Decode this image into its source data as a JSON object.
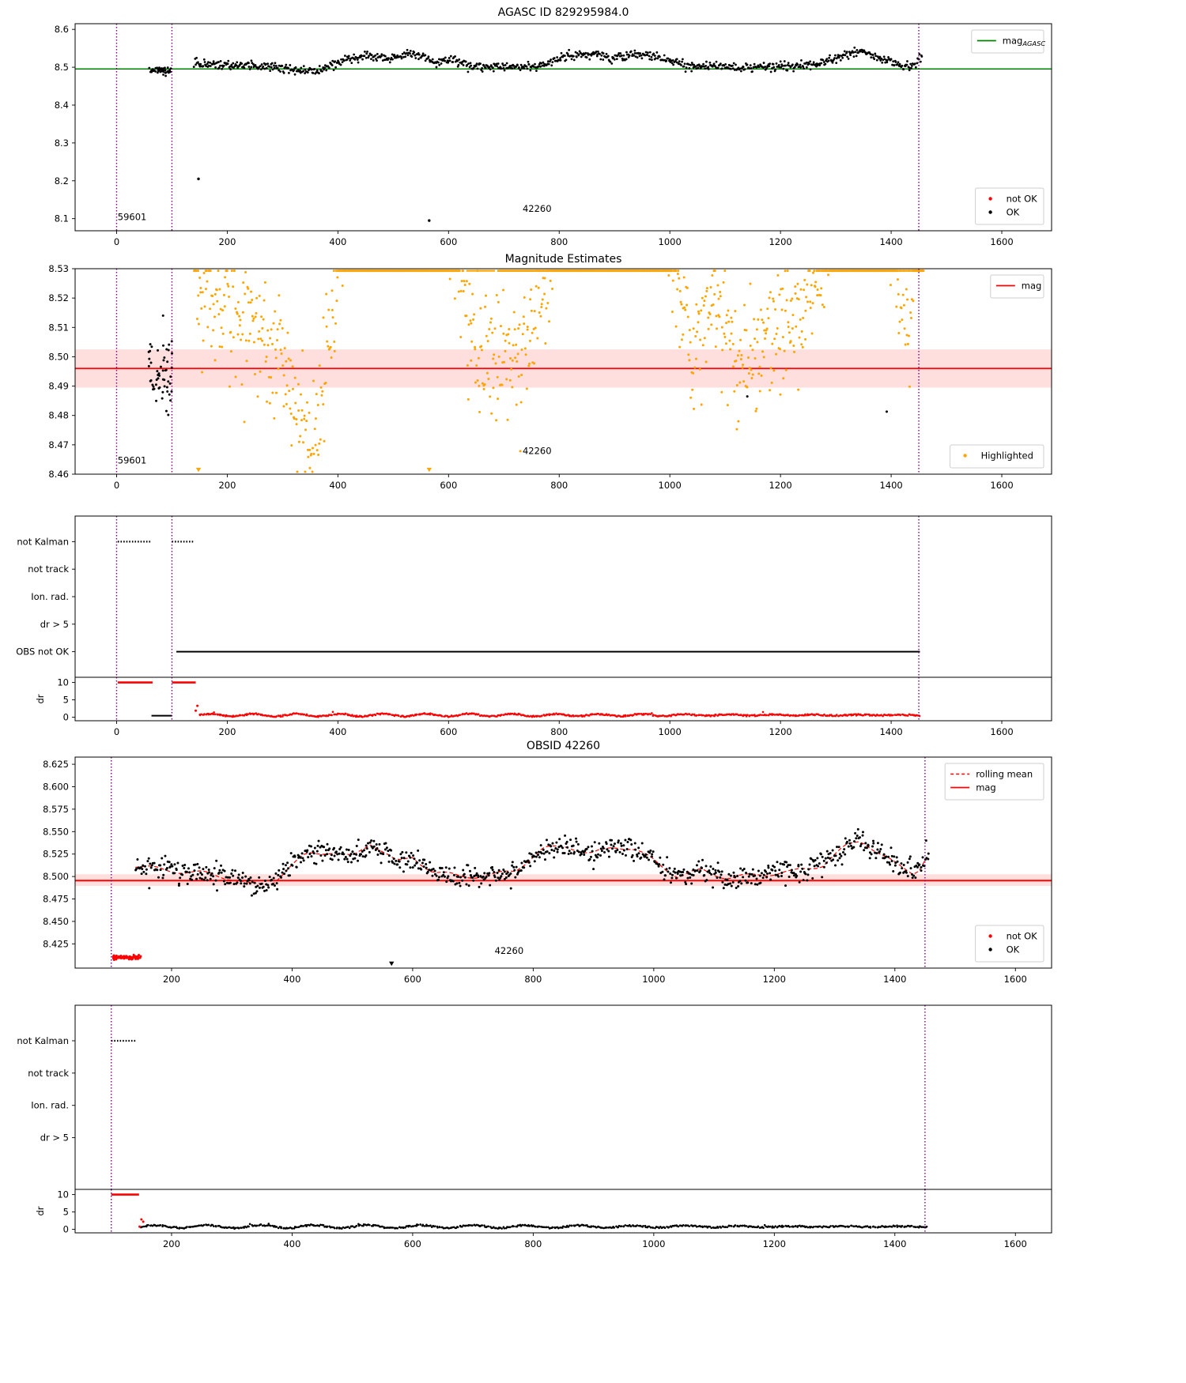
{
  "figure": {
    "background": "#ffffff"
  },
  "chart_data": {
    "shared_curves": {
      "mag_trend": [
        [
          140,
          8.512
        ],
        [
          190,
          8.507
        ],
        [
          250,
          8.504
        ],
        [
          300,
          8.498
        ],
        [
          335,
          8.49
        ],
        [
          365,
          8.492
        ],
        [
          395,
          8.51
        ],
        [
          425,
          8.525
        ],
        [
          465,
          8.528
        ],
        [
          500,
          8.521
        ],
        [
          530,
          8.537
        ],
        [
          555,
          8.527
        ],
        [
          575,
          8.515
        ],
        [
          600,
          8.521
        ],
        [
          635,
          8.505
        ],
        [
          680,
          8.5
        ],
        [
          730,
          8.501
        ],
        [
          770,
          8.507
        ],
        [
          815,
          8.53
        ],
        [
          855,
          8.535
        ],
        [
          895,
          8.524
        ],
        [
          935,
          8.534
        ],
        [
          965,
          8.531
        ],
        [
          1000,
          8.518
        ],
        [
          1040,
          8.5
        ],
        [
          1080,
          8.507
        ],
        [
          1125,
          8.498
        ],
        [
          1170,
          8.502
        ],
        [
          1230,
          8.505
        ],
        [
          1280,
          8.513
        ],
        [
          1320,
          8.534
        ],
        [
          1345,
          8.541
        ],
        [
          1375,
          8.525
        ],
        [
          1405,
          8.512
        ],
        [
          1435,
          8.503
        ],
        [
          1458,
          8.528
        ]
      ]
    },
    "charts": [
      {
        "id": "agasc",
        "type": "scatter",
        "title": "AGASC ID 829295984.0",
        "xlim": [
          -75,
          1690
        ],
        "ylim": [
          8.068,
          8.615
        ],
        "xticks": [
          0,
          200,
          400,
          600,
          800,
          1000,
          1200,
          1400,
          1600
        ],
        "yticks": [
          8.1,
          8.2,
          8.3,
          8.4,
          8.5,
          8.6
        ],
        "ytick_decimals": 1,
        "hlines": [
          {
            "y": 8.4955,
            "color": "#008000",
            "width": 1.6
          }
        ],
        "bands": [],
        "vlines": [
          {
            "x": 0
          },
          {
            "x": 100
          },
          {
            "x": 1450
          }
        ],
        "vline_style": {
          "color": "#800080",
          "dash": "1.5 2.5",
          "width": 1.4
        },
        "annotations": [
          {
            "text": "59601",
            "x": 28,
            "y": 8.096
          },
          {
            "text": "42260",
            "x": 760,
            "y": 8.118
          }
        ],
        "series": [
          {
            "name": "OK-pre-obsid",
            "color": "#000000",
            "marker": "dot",
            "size": 1.4,
            "gen": {
              "kind": "cluster",
              "n": 45,
              "x": [
                58,
                99
              ],
              "y": 8.492,
              "ysd": 0.005,
              "seed": 11
            }
          },
          {
            "name": "OK-main",
            "color": "#000000",
            "marker": "dot",
            "size": 1.4,
            "gen": {
              "kind": "anchors",
              "curve": "mag_trend",
              "n": 950,
              "x": [
                140,
                1456
              ],
              "noise": 0.0055,
              "seed": 12
            }
          },
          {
            "name": "OK-outliers",
            "color": "#000000",
            "marker": "dot",
            "size": 1.7,
            "gen": {
              "kind": "points",
              "pts": [
                [
                  148,
                  8.205
                ],
                [
                  565,
                  8.095
                ]
              ]
            }
          }
        ],
        "legends": [
          {
            "loc": "upper right",
            "items": [
              {
                "marker": "line",
                "color": "#008000",
                "label": "mag",
                "sub": "AGASC"
              }
            ]
          },
          {
            "loc": "lower right",
            "items": [
              {
                "marker": "dot",
                "color": "#ff0000",
                "label": "not OK"
              },
              {
                "marker": "dot",
                "color": "#000000",
                "label": "OK"
              }
            ]
          }
        ]
      },
      {
        "id": "mag_estimates",
        "type": "scatter",
        "title": "Magnitude Estimates",
        "xlim": [
          -75,
          1690
        ],
        "ylim": [
          8.46,
          8.53
        ],
        "xticks": [
          0,
          200,
          400,
          600,
          800,
          1000,
          1200,
          1400,
          1600
        ],
        "yticks": [
          8.46,
          8.47,
          8.48,
          8.49,
          8.5,
          8.51,
          8.52,
          8.53
        ],
        "ytick_decimals": 2,
        "hlines": [
          {
            "y": 8.496,
            "color": "#ff0000",
            "width": 1.8
          }
        ],
        "bands": [
          {
            "y": [
              8.4895,
              8.5025
            ],
            "color": "rgba(255,0,0,0.13)"
          }
        ],
        "vlines": [
          {
            "x": 0
          },
          {
            "x": 100
          },
          {
            "x": 1450
          }
        ],
        "vline_style": {
          "color": "#800080",
          "dash": "1.5 2.5",
          "width": 1.4
        },
        "segments": [
          {
            "y": 8.5293,
            "x": [
              408,
              562
            ],
            "color": "#ffa500",
            "width": 2.6
          },
          {
            "y": 8.5293,
            "x": [
              632,
              684
            ],
            "color": "#ffa500",
            "width": 2.2
          },
          {
            "y": 8.5293,
            "x": [
              688,
              864
            ],
            "color": "#ffa500",
            "width": 2.8
          },
          {
            "y": 8.5293,
            "x": [
              928,
              1012
            ],
            "color": "#ffa500",
            "width": 2.2
          },
          {
            "y": 8.5293,
            "x": [
              1326,
              1458
            ],
            "color": "#ffa500",
            "width": 2.6
          }
        ],
        "annotations": [
          {
            "text": "59601",
            "x": 28,
            "y": 8.4637
          },
          {
            "text": "42260",
            "x": 760,
            "y": 8.4668
          }
        ],
        "series": [
          {
            "name": "previous-obsid",
            "color": "#000000",
            "marker": "dot",
            "size": 1.5,
            "gen": {
              "kind": "cluster",
              "n": 52,
              "x": [
                58,
                101
              ],
              "y": 8.496,
              "ysd": 0.0065,
              "seed": 21
            }
          },
          {
            "name": "previous-obsid-extra",
            "color": "#000000",
            "marker": "dot",
            "size": 1.5,
            "gen": {
              "kind": "points",
              "pts": [
                [
                  90,
                  8.4815
                ],
                [
                  84,
                  8.514
                ],
                [
                  1140,
                  8.4865
                ],
                [
                  1392,
                  8.4813
                ]
              ]
            }
          },
          {
            "name": "Highlighted",
            "color": "#ffa500",
            "marker": "dot",
            "size": 1.5,
            "gen": {
              "kind": "anchors",
              "curve": "mag_trend",
              "n": 1150,
              "x": [
                140,
                1458
              ],
              "noise": 0.0105,
              "amplify": 2.6,
              "base": 8.5,
              "clip": [
                8.4608,
                8.5293
              ],
              "seed": 22
            }
          },
          {
            "name": "clipped-low",
            "color": "#ffa500",
            "marker": "tri-down",
            "size": 3.2,
            "gen": {
              "kind": "points",
              "pts": [
                [
                  148,
                  8.4615
                ],
                [
                  565,
                  8.4615
                ]
              ]
            }
          }
        ],
        "legends": [
          {
            "loc": "upper right",
            "items": [
              {
                "marker": "line",
                "color": "#ff0000",
                "label": "mag"
              }
            ]
          },
          {
            "loc": "lower right",
            "items": [
              {
                "marker": "dot",
                "color": "#ffa500",
                "label": "Highlighted"
              }
            ]
          }
        ]
      },
      {
        "id": "flags_all",
        "type": "flags",
        "xlim": [
          -75,
          1690
        ],
        "xticks": [
          0,
          200,
          400,
          600,
          800,
          1000,
          1200,
          1400,
          1600
        ],
        "rows": [
          {
            "label": "not Kalman",
            "value": 5
          },
          {
            "label": "not track",
            "value": 4
          },
          {
            "label": "Ion. rad.",
            "value": 3
          },
          {
            "label": "dr > 5",
            "value": 2
          },
          {
            "label": "OBS not OK",
            "value": 1
          }
        ],
        "rows_ylim": [
          0.07,
          5.93
        ],
        "vlines": [
          {
            "x": 0
          },
          {
            "x": 100
          },
          {
            "x": 1450
          }
        ],
        "vline_style": {
          "color": "#800080",
          "dash": "1.5 2.5",
          "width": 1.4
        },
        "flag_segments": [
          {
            "row": 5,
            "x": [
              2,
              62
            ],
            "color": "#000000",
            "style": "dotted",
            "width": 2.2
          },
          {
            "row": 5,
            "x": [
              100,
              140
            ],
            "color": "#000000",
            "style": "dotted",
            "width": 2.2
          },
          {
            "row": 1,
            "x": [
              108,
              1452
            ],
            "color": "#000000",
            "style": "solid",
            "width": 2.0
          }
        ],
        "dr": {
          "ylabel": "dr",
          "ylim": [
            -1,
            11.5
          ],
          "yticks": [
            0,
            5,
            10
          ],
          "segments": [
            {
              "y": 10,
              "x": [
                2,
                65
              ],
              "color": "#ff0000",
              "width": 2.6
            },
            {
              "y": 10,
              "x": [
                100,
                143
              ],
              "color": "#ff0000",
              "width": 2.6
            },
            {
              "y": 0.45,
              "x": [
                63,
                100
              ],
              "color": "#000000",
              "width": 2.0
            }
          ],
          "scatter": [
            {
              "color": "#ff0000",
              "size": 1.3,
              "gen": {
                "kind": "wavy",
                "n": 680,
                "x": [
                  150,
                  1452
                ],
                "y0": 0.62,
                "amp": 0.4,
                "period": 78,
                "noise": 0.2,
                "min": 0.07,
                "seed": 31
              }
            },
            {
              "color": "#ff0000",
              "size": 1.5,
              "gen": {
                "kind": "points",
                "pts": [
                  [
                    146,
                    3.3
                  ],
                  [
                    143,
                    1.9
                  ]
                ]
              }
            }
          ]
        }
      },
      {
        "id": "obsid",
        "type": "scatter",
        "title": "OBSID 42260",
        "xlim": [
          40,
          1660
        ],
        "ylim": [
          8.398,
          8.633
        ],
        "xticks": [
          200,
          400,
          600,
          800,
          1000,
          1200,
          1400,
          1600
        ],
        "yticks": [
          8.425,
          8.45,
          8.475,
          8.5,
          8.525,
          8.55,
          8.575,
          8.6,
          8.625
        ],
        "ytick_decimals": 3,
        "hlines": [
          {
            "y": 8.4955,
            "color": "#ff0000",
            "width": 2.0
          }
        ],
        "bands": [
          {
            "y": [
              8.4895,
              8.5025
            ],
            "color": "rgba(255,0,0,0.13)"
          }
        ],
        "vlines": [
          {
            "x": 100
          },
          {
            "x": 1450
          }
        ],
        "vline_style": {
          "color": "#800080",
          "dash": "1.5 2.5",
          "width": 1.4
        },
        "lines": [
          {
            "curve": "mag_trend",
            "color": "#ff0000",
            "width": 1.2,
            "dash": "5 3",
            "label": "rolling mean"
          }
        ],
        "annotations": [
          {
            "text": "42260",
            "x": 760,
            "y": 8.414
          }
        ],
        "series": [
          {
            "name": "OK",
            "color": "#000000",
            "marker": "dot",
            "size": 1.5,
            "gen": {
              "kind": "anchors",
              "curve": "mag_trend",
              "n": 900,
              "x": [
                140,
                1456
              ],
              "noise": 0.0062,
              "seed": 41
            }
          },
          {
            "name": "not OK",
            "color": "#ff0000",
            "marker": "dot",
            "size": 1.5,
            "gen": {
              "kind": "cluster",
              "n": 75,
              "x": [
                103,
                149
              ],
              "y": 8.41,
              "ysd": 0.0012,
              "seed": 42
            }
          },
          {
            "name": "clipped-low",
            "color": "#000000",
            "marker": "tri-down",
            "size": 3.2,
            "gen": {
              "kind": "points",
              "pts": [
                [
                  565,
                  8.403
                ]
              ]
            }
          }
        ],
        "legends": [
          {
            "loc": "upper right",
            "items": [
              {
                "marker": "dash",
                "color": "#ff0000",
                "label": "rolling mean"
              },
              {
                "marker": "line",
                "color": "#ff0000",
                "label": "mag"
              }
            ]
          },
          {
            "loc": "lower right",
            "items": [
              {
                "marker": "dot",
                "color": "#ff0000",
                "label": "not OK"
              },
              {
                "marker": "dot",
                "color": "#000000",
                "label": "OK"
              }
            ]
          }
        ]
      },
      {
        "id": "flags_obsid",
        "type": "flags",
        "xlim": [
          40,
          1660
        ],
        "xticks": [
          200,
          400,
          600,
          800,
          1000,
          1200,
          1400,
          1600
        ],
        "rows": [
          {
            "label": "not Kalman",
            "value": 4
          },
          {
            "label": "not track",
            "value": 3
          },
          {
            "label": "Ion. rad.",
            "value": 2
          },
          {
            "label": "dr > 5",
            "value": 1
          }
        ],
        "rows_ylim": [
          -0.6,
          5.1
        ],
        "vlines": [
          {
            "x": 100
          },
          {
            "x": 1450
          }
        ],
        "vline_style": {
          "color": "#800080",
          "dash": "1.5 2.5",
          "width": 1.4
        },
        "flag_segments": [
          {
            "row": 4,
            "x": [
              100,
              140
            ],
            "color": "#000000",
            "style": "dotted",
            "width": 2.2
          }
        ],
        "dr": {
          "ylabel": "dr",
          "ylim": [
            -1,
            11.5
          ],
          "yticks": [
            0,
            5,
            10
          ],
          "segments": [
            {
              "y": 10,
              "x": [
                100,
                146
              ],
              "color": "#ff0000",
              "width": 2.6
            }
          ],
          "scatter": [
            {
              "color": "#000000",
              "size": 1.3,
              "gen": {
                "kind": "wavy",
                "n": 650,
                "x": [
                  150,
                  1453
                ],
                "y0": 0.8,
                "amp": 0.45,
                "period": 88,
                "noise": 0.22,
                "min": 0.1,
                "seed": 51
              }
            },
            {
              "color": "#ff0000",
              "size": 1.5,
              "gen": {
                "kind": "points",
                "pts": [
                  [
                    147,
                    0.8
                  ],
                  [
                    150,
                    2.85
                  ],
                  [
                    153,
                    2.2
                  ]
                ]
              }
            }
          ]
        }
      }
    ]
  }
}
